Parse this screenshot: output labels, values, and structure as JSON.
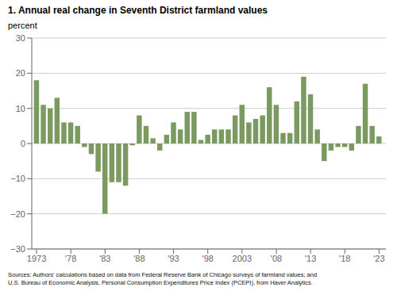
{
  "chart_data": {
    "type": "bar",
    "title": "1. Annual real change in Seventh District farmland values",
    "y_label": "percent",
    "source": "Sources: Authors’ calculations based on data from Federal Reserve Bank of Chicago surveys of farmland values; and\nU.S. Bureau of Economic Analysis, Personal Consumption Expenditures Price Index (PCEPI), from Haver Analytics.",
    "x": [
      1973,
      1974,
      1975,
      1976,
      1977,
      1978,
      1979,
      1980,
      1981,
      1982,
      1983,
      1984,
      1985,
      1986,
      1987,
      1988,
      1989,
      1990,
      1991,
      1992,
      1993,
      1994,
      1995,
      1996,
      1997,
      1998,
      1999,
      2000,
      2001,
      2002,
      2003,
      2004,
      2005,
      2006,
      2007,
      2008,
      2009,
      2010,
      2011,
      2012,
      2013,
      2014,
      2015,
      2016,
      2017,
      2018,
      2019,
      2020,
      2021,
      2022,
      2023
    ],
    "values": [
      18,
      11,
      10,
      13,
      6,
      6,
      5,
      -1,
      -3,
      -8,
      -20,
      -11,
      -11,
      -12,
      -0.5,
      8,
      5,
      1.5,
      -2,
      2.5,
      6,
      4,
      9,
      9,
      1,
      2.5,
      4,
      4,
      4,
      8,
      11,
      6,
      7,
      8,
      16,
      11,
      3,
      3,
      12,
      19,
      14,
      4,
      -5,
      -2,
      -1,
      -1,
      -2,
      5,
      17,
      5,
      2
    ],
    "color": "#7a9a5f",
    "xlim": [
      1972.3,
      2024.0
    ],
    "xticks": [
      1973,
      {
        "value": 1978,
        "label": "'78"
      },
      {
        "value": 1983,
        "label": "'83"
      },
      {
        "value": 1988,
        "label": "'88"
      },
      {
        "value": 1993,
        "label": "'93"
      },
      {
        "value": 1998,
        "label": "'98"
      },
      2003,
      {
        "value": 2008,
        "label": "'08"
      },
      {
        "value": 2013,
        "label": "'13"
      },
      {
        "value": 2018,
        "label": "'18"
      },
      {
        "value": 2023,
        "label": "'23"
      }
    ],
    "ylim": [
      -30,
      30
    ],
    "yticks": [
      {
        "value": -30,
        "label": "−30"
      },
      {
        "value": -20,
        "label": "−20"
      },
      {
        "value": -10,
        "label": "−10"
      },
      0,
      10,
      20,
      30
    ],
    "grid": true
  }
}
